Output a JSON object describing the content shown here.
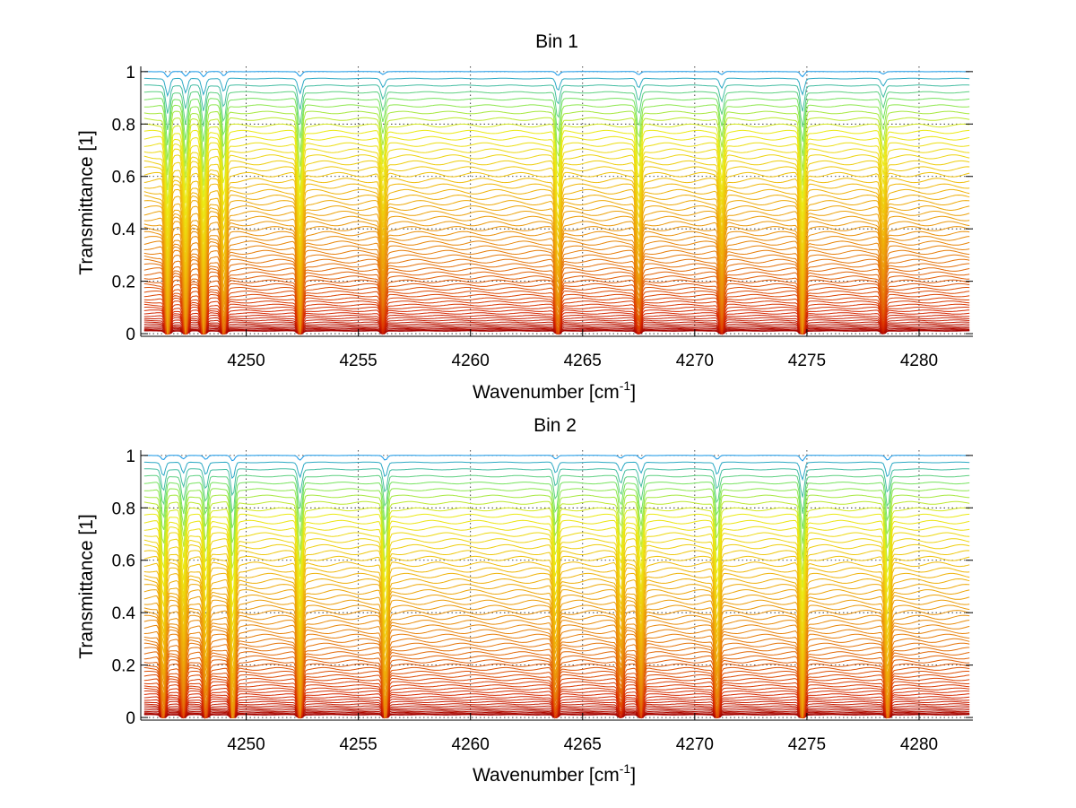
{
  "figure": {
    "background": "#ffffff"
  },
  "chart_data": [
    {
      "type": "line",
      "title": "Bin 1",
      "xlabel": "Wavenumber [cm",
      "xlabel_superscript": "-1",
      "xlabel_suffix": "]",
      "ylabel": "Transmittance [1]",
      "xlim": [
        4245.3,
        4282.4
      ],
      "ylim": [
        -0.01,
        1.02
      ],
      "xticks": [
        4250,
        4255,
        4260,
        4265,
        4270,
        4275,
        4280
      ],
      "yticks": [
        0,
        0.2,
        0.4,
        0.6,
        0.8,
        1
      ],
      "ytick_labels": [
        "0",
        "0.2",
        "0.4",
        "0.6",
        "0.8",
        "1"
      ],
      "grid": "dotted",
      "legend": "none",
      "colormap": "jet",
      "series_count": 60,
      "series_baselines": "0.01 to 1.0 (stacked family of transmittance spectra)",
      "absorption_lines": [
        {
          "x": 4246.5,
          "depth": 0.7
        },
        {
          "x": 4247.3,
          "depth": 0.6
        },
        {
          "x": 4248.1,
          "depth": 0.65
        },
        {
          "x": 4249.0,
          "depth": 0.55
        },
        {
          "x": 4252.4,
          "depth": 0.6
        },
        {
          "x": 4256.1,
          "depth": 0.35
        },
        {
          "x": 4263.9,
          "depth": 0.5
        },
        {
          "x": 4267.5,
          "depth": 0.4
        },
        {
          "x": 4271.2,
          "depth": 0.4
        },
        {
          "x": 4274.8,
          "depth": 0.65
        },
        {
          "x": 4278.4,
          "depth": 0.3
        }
      ]
    },
    {
      "type": "line",
      "title": "Bin 2",
      "xlabel": "Wavenumber [cm",
      "xlabel_superscript": "-1",
      "xlabel_suffix": "]",
      "ylabel": "Transmittance [1]",
      "xlim": [
        4245.3,
        4282.4
      ],
      "ylim": [
        -0.01,
        1.02
      ],
      "xticks": [
        4250,
        4255,
        4260,
        4265,
        4270,
        4275,
        4280
      ],
      "yticks": [
        0,
        0.2,
        0.4,
        0.6,
        0.8,
        1
      ],
      "ytick_labels": [
        "0",
        "0.2",
        "0.4",
        "0.6",
        "0.8",
        "1"
      ],
      "grid": "dotted",
      "legend": "none",
      "colormap": "jet",
      "series_count": 60,
      "series_baselines": "0.01 to 1.0 (stacked family of transmittance spectra)",
      "absorption_lines": [
        {
          "x": 4246.3,
          "depth": 0.55
        },
        {
          "x": 4247.2,
          "depth": 0.45
        },
        {
          "x": 4248.2,
          "depth": 0.5
        },
        {
          "x": 4249.4,
          "depth": 0.7
        },
        {
          "x": 4252.4,
          "depth": 0.6
        },
        {
          "x": 4256.2,
          "depth": 0.6
        },
        {
          "x": 4263.8,
          "depth": 0.45
        },
        {
          "x": 4266.7,
          "depth": 0.35
        },
        {
          "x": 4267.6,
          "depth": 0.45
        },
        {
          "x": 4271.0,
          "depth": 0.5
        },
        {
          "x": 4274.8,
          "depth": 0.7
        },
        {
          "x": 4278.6,
          "depth": 0.6
        }
      ]
    }
  ]
}
